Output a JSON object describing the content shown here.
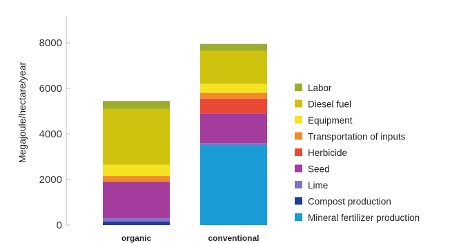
{
  "chart_data": {
    "type": "bar",
    "stacked": true,
    "title": "",
    "xlabel": "",
    "ylabel": "Megajoule/hectare/year",
    "ylim": [
      0,
      9000
    ],
    "yticks": [
      0,
      2000,
      4000,
      6000,
      8000
    ],
    "grid": false,
    "legend_position": "right",
    "categories": [
      "organic",
      "conventional"
    ],
    "series": [
      {
        "name": "Mineral fertilizer production",
        "color": "#1a9cd6",
        "values": [
          0,
          3500
        ]
      },
      {
        "name": "Compost production",
        "color": "#1b3f9a",
        "values": [
          150,
          0
        ]
      },
      {
        "name": "Lime",
        "color": "#7f73c7",
        "values": [
          150,
          100
        ]
      },
      {
        "name": "Seed",
        "color": "#a43d9e",
        "values": [
          1600,
          1300
        ]
      },
      {
        "name": "Herbicide",
        "color": "#ea4a35",
        "values": [
          0,
          650
        ]
      },
      {
        "name": "Transportation of inputs",
        "color": "#f28a2c",
        "values": [
          250,
          250
        ]
      },
      {
        "name": "Equipment",
        "color": "#f4e322",
        "values": [
          500,
          400
        ]
      },
      {
        "name": "Diesel fuel",
        "color": "#cfc20c",
        "values": [
          2450,
          1450
        ]
      },
      {
        "name": "Labor",
        "color": "#9bac2e",
        "values": [
          350,
          300
        ]
      }
    ]
  }
}
